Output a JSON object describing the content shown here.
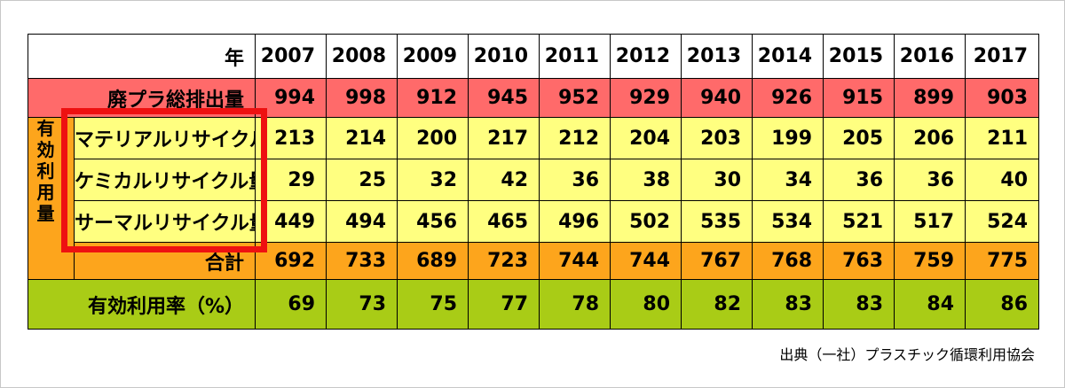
{
  "header_label": "年",
  "years": [
    "2007",
    "2008",
    "2009",
    "2010",
    "2011",
    "2012",
    "2013",
    "2014",
    "2015",
    "2016",
    "2017"
  ],
  "total": {
    "label": "廃プラ総排出量",
    "values": [
      "994",
      "998",
      "912",
      "945",
      "952",
      "929",
      "940",
      "926",
      "915",
      "899",
      "903"
    ]
  },
  "effective_use_label": [
    "有",
    "効",
    "利",
    "用",
    "量"
  ],
  "material": {
    "label": "マテリアルリサイクル量",
    "values": [
      "213",
      "214",
      "200",
      "217",
      "212",
      "204",
      "203",
      "199",
      "205",
      "206",
      "211"
    ]
  },
  "chemical": {
    "label": "ケミカルリサイクル量",
    "values": [
      "29",
      "25",
      "32",
      "42",
      "36",
      "38",
      "30",
      "34",
      "36",
      "36",
      "40"
    ]
  },
  "thermal": {
    "label": "サーマルリサイクル量",
    "values": [
      "449",
      "494",
      "456",
      "465",
      "496",
      "502",
      "535",
      "534",
      "521",
      "517",
      "524"
    ]
  },
  "sum": {
    "label": "合計",
    "values": [
      "692",
      "733",
      "689",
      "723",
      "744",
      "744",
      "767",
      "768",
      "763",
      "759",
      "775"
    ]
  },
  "rate": {
    "label": "有効利用率（%）",
    "values": [
      "69",
      "73",
      "75",
      "77",
      "78",
      "80",
      "82",
      "83",
      "83",
      "84",
      "86"
    ]
  },
  "source": "出典（一社）プラスチック循環利用協会",
  "colors": {
    "total_row": "#ff6a6a",
    "recycle_rows": "#ffff80",
    "sum_row": "#fda51c",
    "rate_row": "#a9cc16",
    "highlight_box": "#ee1111"
  }
}
